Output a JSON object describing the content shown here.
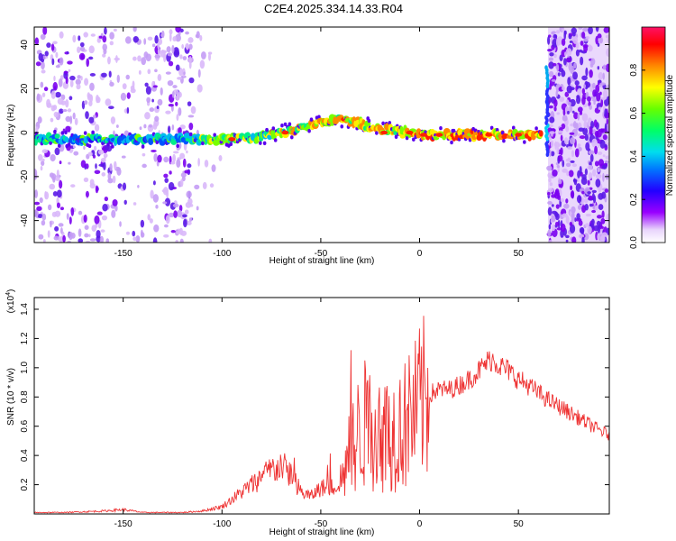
{
  "title": "C2E4.2025.334.14.33.R04",
  "chart_data": [
    {
      "type": "heatmap",
      "title": "",
      "xlabel": "Height of straight line (km)",
      "ylabel": "Frequency (Hz)",
      "xlim": [
        -195,
        96
      ],
      "ylim": [
        -50,
        48
      ],
      "xticks": [
        -150,
        -100,
        -50,
        0,
        50
      ],
      "yticks": [
        -40,
        -20,
        0,
        20,
        40
      ],
      "colorbar": {
        "label": "Normalized spectral amplitude",
        "range": [
          0.0,
          1.0
        ],
        "ticks": [
          0.0,
          0.2,
          0.4,
          0.6,
          0.8
        ],
        "colors": [
          "#ffffff",
          "#d8b8f8",
          "#8800ff",
          "#0000ff",
          "#00ccff",
          "#00ff66",
          "#88ff00",
          "#ffff00",
          "#ff8800",
          "#ff0000",
          "#ff0088"
        ]
      },
      "ridge": {
        "description_points_x": [
          -195,
          -150,
          -120,
          -100,
          -80,
          -60,
          -50,
          -42,
          -35,
          -25,
          -15,
          -5,
          0,
          10,
          30,
          50,
          58,
          62,
          64,
          66
        ],
        "description_points_f": [
          -3,
          -3,
          -3,
          -3,
          -2,
          2,
          5,
          6,
          5,
          3,
          1,
          0,
          -1,
          -1,
          -1,
          -1,
          -1,
          -1,
          -2,
          5
        ],
        "peak_amplitude_points_x": [
          -95,
          -68,
          -18,
          -5,
          2,
          10,
          35,
          50
        ],
        "peak_amplitude_points_f": [
          -3,
          0,
          0,
          0,
          -1,
          -1,
          -1,
          -1
        ]
      },
      "noise_regions_x": [
        [
          -195,
          -115
        ],
        [
          65,
          96
        ]
      ]
    },
    {
      "type": "line",
      "title": "",
      "xlabel": "Height of straight line (km)",
      "ylabel": "SNR (10 * v/v)",
      "scale_label": "(x10^4)",
      "xlim": [
        -195,
        96
      ],
      "ylim": [
        0,
        1.48
      ],
      "xticks": [
        -150,
        -100,
        -50,
        0,
        50
      ],
      "yticks": [
        0.2,
        0.4,
        0.6,
        0.8,
        1.0,
        1.2,
        1.4
      ],
      "series": [
        {
          "name": "SNR",
          "color": "#ee3333",
          "x": [
            -195,
            -180,
            -160,
            -150,
            -140,
            -120,
            -110,
            -100,
            -95,
            -90,
            -85,
            -80,
            -75,
            -70,
            -65,
            -60,
            -55,
            -50,
            -45,
            -40,
            -35,
            -30,
            -27,
            -25,
            -20,
            -15,
            -10,
            -5,
            0,
            5,
            10,
            15,
            20,
            25,
            30,
            35,
            37,
            40,
            45,
            50,
            55,
            60,
            65,
            70,
            75,
            80,
            85,
            90,
            96
          ],
          "y": [
            0.01,
            0.01,
            0.02,
            0.03,
            0.01,
            0.01,
            0.02,
            0.05,
            0.1,
            0.15,
            0.2,
            0.25,
            0.3,
            0.33,
            0.27,
            0.15,
            0.12,
            0.18,
            0.18,
            0.22,
            0.42,
            0.58,
            0.62,
            0.6,
            0.55,
            0.55,
            0.6,
            0.62,
            0.75,
            0.82,
            0.85,
            0.85,
            0.88,
            0.92,
            0.98,
            1.05,
            1.06,
            1.02,
            0.98,
            0.92,
            0.88,
            0.83,
            0.78,
            0.74,
            0.7,
            0.66,
            0.62,
            0.58,
            0.54
          ]
        }
      ]
    }
  ]
}
